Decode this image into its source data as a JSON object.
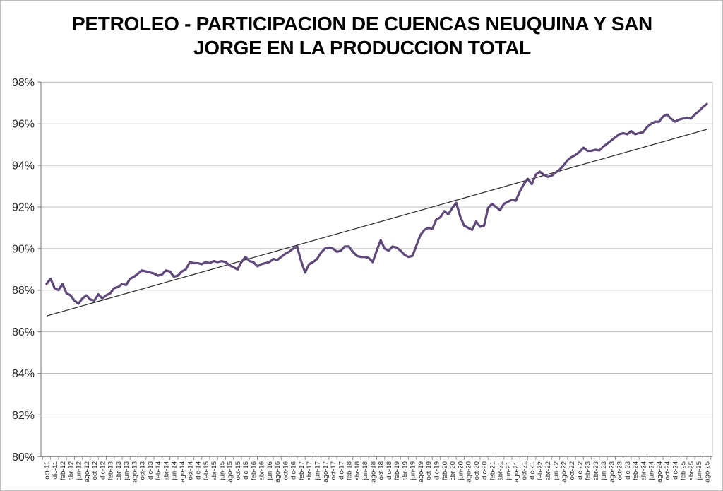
{
  "title": {
    "line1": "PETROLEO - PARTICIPACION DE CUENCAS NEUQUINA Y SAN",
    "line2": "JORGE EN LA PRODUCCION TOTAL"
  },
  "colors": {
    "series_line": "#5F497A",
    "trend_line": "#333333",
    "gridline": "#bfbfbf",
    "axis_line": "#8c8c8c",
    "tick_label": "#262626",
    "background": "#ffffff",
    "frame_border": "#bfbfbf"
  },
  "chart_data": {
    "type": "line",
    "title": "PETROLEO - PARTICIPACION DE CUENCAS NEUQUINA Y SAN JORGE EN LA PRODUCCION TOTAL",
    "xlabel": "",
    "ylabel": "",
    "ylim": [
      80,
      98
    ],
    "ytick_step": 2,
    "ytick_labels": [
      "80%",
      "82%",
      "84%",
      "86%",
      "88%",
      "90%",
      "92%",
      "94%",
      "96%",
      "98%"
    ],
    "grid": "horizontal",
    "legend": "none",
    "x_label_every_n_months": 2,
    "categories": [
      "oct-11",
      "nov-11",
      "dic-11",
      "ene-12",
      "feb-12",
      "mar-12",
      "abr-12",
      "may-12",
      "jun-12",
      "jul-12",
      "ago-12",
      "sep-12",
      "oct-12",
      "nov-12",
      "dic-12",
      "ene-13",
      "feb-13",
      "mar-13",
      "abr-13",
      "may-13",
      "jun-13",
      "jul-13",
      "ago-13",
      "sep-13",
      "oct-13",
      "nov-13",
      "dic-13",
      "ene-14",
      "feb-14",
      "mar-14",
      "abr-14",
      "may-14",
      "jun-14",
      "jul-14",
      "ago-14",
      "sep-14",
      "oct-14",
      "nov-14",
      "dic-14",
      "ene-15",
      "feb-15",
      "mar-15",
      "abr-15",
      "may-15",
      "jun-15",
      "jul-15",
      "ago-15",
      "sep-15",
      "oct-15",
      "nov-15",
      "dic-15",
      "ene-16",
      "feb-16",
      "mar-16",
      "abr-16",
      "may-16",
      "jun-16",
      "jul-16",
      "ago-16",
      "sep-16",
      "oct-16",
      "nov-16",
      "dic-16",
      "ene-17",
      "feb-17",
      "mar-17",
      "abr-17",
      "may-17",
      "jun-17",
      "jul-17",
      "ago-17",
      "sep-17",
      "oct-17",
      "nov-17",
      "dic-17",
      "ene-18",
      "feb-18",
      "mar-18",
      "abr-18",
      "may-18",
      "jun-18",
      "jul-18",
      "ago-18",
      "sep-18",
      "oct-18",
      "nov-18",
      "dic-18",
      "ene-19",
      "feb-19",
      "mar-19",
      "abr-19",
      "may-19",
      "jun-19",
      "jul-19",
      "ago-19",
      "sep-19",
      "oct-19",
      "nov-19",
      "dic-19",
      "ene-20",
      "feb-20",
      "mar-20",
      "abr-20",
      "may-20",
      "jun-20",
      "jul-20",
      "ago-20",
      "sep-20",
      "oct-20",
      "nov-20",
      "dic-20",
      "ene-21",
      "feb-21",
      "mar-21",
      "abr-21",
      "may-21",
      "jun-21",
      "jul-21",
      "ago-21",
      "sep-21",
      "oct-21",
      "nov-21",
      "dic-21",
      "ene-22",
      "feb-22",
      "mar-22",
      "abr-22",
      "may-22",
      "jun-22",
      "jul-22",
      "ago-22",
      "sep-22",
      "oct-22",
      "nov-22",
      "dic-22",
      "ene-23",
      "feb-23",
      "mar-23",
      "abr-23",
      "may-23",
      "jun-23",
      "jul-23",
      "ago-23",
      "sep-23",
      "oct-23",
      "nov-23",
      "dic-23",
      "ene-24",
      "feb-24",
      "mar-24",
      "abr-24",
      "may-24",
      "jun-24",
      "jul-24",
      "ago-24",
      "sep-24",
      "oct-24",
      "nov-24",
      "dic-24",
      "ene-25",
      "feb-25",
      "mar-25",
      "abr-25",
      "may-25",
      "jun-25",
      "jul-25",
      "ago-25"
    ],
    "series": [
      {
        "name": "participacion-cuencas-pct",
        "values": [
          88.3,
          88.55,
          88.1,
          88.0,
          88.3,
          87.85,
          87.75,
          87.5,
          87.35,
          87.6,
          87.75,
          87.55,
          87.5,
          87.8,
          87.6,
          87.75,
          87.85,
          88.1,
          88.15,
          88.3,
          88.25,
          88.55,
          88.65,
          88.8,
          88.95,
          88.9,
          88.85,
          88.8,
          88.7,
          88.75,
          88.95,
          88.9,
          88.65,
          88.7,
          88.9,
          89.0,
          89.35,
          89.3,
          89.3,
          89.25,
          89.35,
          89.3,
          89.4,
          89.35,
          89.4,
          89.35,
          89.2,
          89.1,
          89.0,
          89.35,
          89.6,
          89.4,
          89.35,
          89.15,
          89.25,
          89.3,
          89.35,
          89.5,
          89.45,
          89.6,
          89.75,
          89.85,
          90.0,
          90.1,
          89.4,
          88.85,
          89.25,
          89.35,
          89.5,
          89.8,
          90.0,
          90.05,
          90.0,
          89.85,
          89.9,
          90.1,
          90.1,
          89.85,
          89.65,
          89.6,
          89.6,
          89.55,
          89.35,
          89.9,
          90.4,
          90.0,
          89.9,
          90.1,
          90.05,
          89.9,
          89.7,
          89.6,
          89.65,
          90.15,
          90.65,
          90.9,
          91.0,
          90.95,
          91.4,
          91.5,
          91.8,
          91.65,
          91.95,
          92.2,
          91.55,
          91.1,
          91.0,
          90.9,
          91.3,
          91.05,
          91.1,
          91.95,
          92.15,
          92.0,
          91.85,
          92.15,
          92.25,
          92.35,
          92.3,
          92.75,
          93.1,
          93.35,
          93.1,
          93.55,
          93.7,
          93.55,
          93.45,
          93.5,
          93.65,
          93.8,
          94.0,
          94.25,
          94.4,
          94.5,
          94.65,
          94.85,
          94.7,
          94.7,
          94.75,
          94.72,
          94.9,
          95.05,
          95.2,
          95.35,
          95.5,
          95.55,
          95.5,
          95.65,
          95.5,
          95.55,
          95.6,
          95.85,
          96.0,
          96.1,
          96.1,
          96.35,
          96.45,
          96.25,
          96.1,
          96.2,
          96.25,
          96.3,
          96.25,
          96.45,
          96.6,
          96.8,
          96.95
        ]
      }
    ],
    "trendline": {
      "type": "linear",
      "start_value": 86.76,
      "end_value": 95.73
    }
  }
}
